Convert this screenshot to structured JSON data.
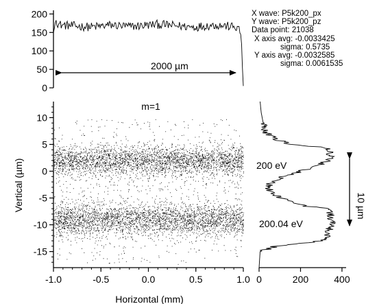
{
  "info_box": {
    "x_wave": "X wave: P5k200_px",
    "y_wave": "Y wave: P5k200_pz",
    "data_point": "Data point: 21038",
    "x_avg": "X axis avg: -0.0033425",
    "x_sigma": "sigma: 0.5735",
    "y_avg": "Y axis avg: -0.0032585",
    "y_sigma": "sigma: 0.0061535"
  },
  "annotations": {
    "width_label": "2000 µm",
    "mode_label": "m=1",
    "energy_upper": "200 eV",
    "energy_lower": "200.04 eV",
    "vertical_span": "10 µm"
  },
  "chart_data": [
    {
      "type": "line",
      "panel": "top-horizontal-profile",
      "xlim": [
        -1.0,
        1.0
      ],
      "ylim": [
        0,
        210
      ],
      "yticks": [
        0,
        50,
        100,
        150,
        200
      ],
      "x": [
        -1.0,
        -0.99,
        -0.98,
        -0.97,
        -0.95,
        -0.9,
        -0.8,
        -0.7,
        -0.6,
        -0.5,
        -0.4,
        -0.3,
        -0.2,
        -0.1,
        0.0,
        0.1,
        0.2,
        0.3,
        0.4,
        0.5,
        0.6,
        0.7,
        0.8,
        0.9,
        0.95,
        0.97,
        0.98,
        0.99,
        1.0
      ],
      "y": [
        150,
        162,
        178,
        185,
        172,
        170,
        168,
        166,
        165,
        167,
        170,
        168,
        166,
        168,
        170,
        172,
        170,
        168,
        166,
        165,
        168,
        170,
        168,
        165,
        160,
        150,
        130,
        60,
        5
      ],
      "noise_amplitude": 12
    },
    {
      "type": "scatter",
      "panel": "main",
      "xlabel": "Horizontal (mm)",
      "ylabel": "Vertical (µm)",
      "xlim": [
        -1.0,
        1.0
      ],
      "ylim": [
        -18,
        13
      ],
      "xticks": [
        -1.0,
        -0.5,
        0.0,
        0.5,
        1.0
      ],
      "xtick_labels": [
        "-1.0",
        "-0.5",
        "0.0",
        "0.5",
        "1.0"
      ],
      "yticks": [
        -15,
        -10,
        -5,
        0,
        5,
        10
      ],
      "point_count": 21038,
      "clusters": [
        {
          "label": "200 eV",
          "center_y": 2.0,
          "half_width_y": 3.5
        },
        {
          "label": "200.04 eV",
          "center_y": -9.0,
          "half_width_y": 3.8
        }
      ]
    },
    {
      "type": "line",
      "panel": "right-vertical-profile",
      "orientation": "vertical",
      "xlim": [
        0,
        420
      ],
      "xticks": [
        0,
        200,
        400
      ],
      "ylim": [
        -18,
        13
      ],
      "y": [
        -18,
        -15,
        -14,
        -13,
        -12,
        -11,
        -10,
        -9,
        -8,
        -7,
        -6.5,
        -6,
        -5,
        -4,
        -3,
        -2,
        -1,
        0,
        1,
        2,
        3,
        4,
        4.5,
        5,
        6,
        7,
        9,
        11,
        13
      ],
      "x": [
        0,
        5,
        80,
        300,
        330,
        340,
        345,
        350,
        350,
        330,
        220,
        180,
        110,
        60,
        40,
        60,
        120,
        200,
        290,
        330,
        345,
        340,
        300,
        150,
        80,
        40,
        20,
        10,
        5
      ],
      "noise_amplitude": 22
    }
  ]
}
